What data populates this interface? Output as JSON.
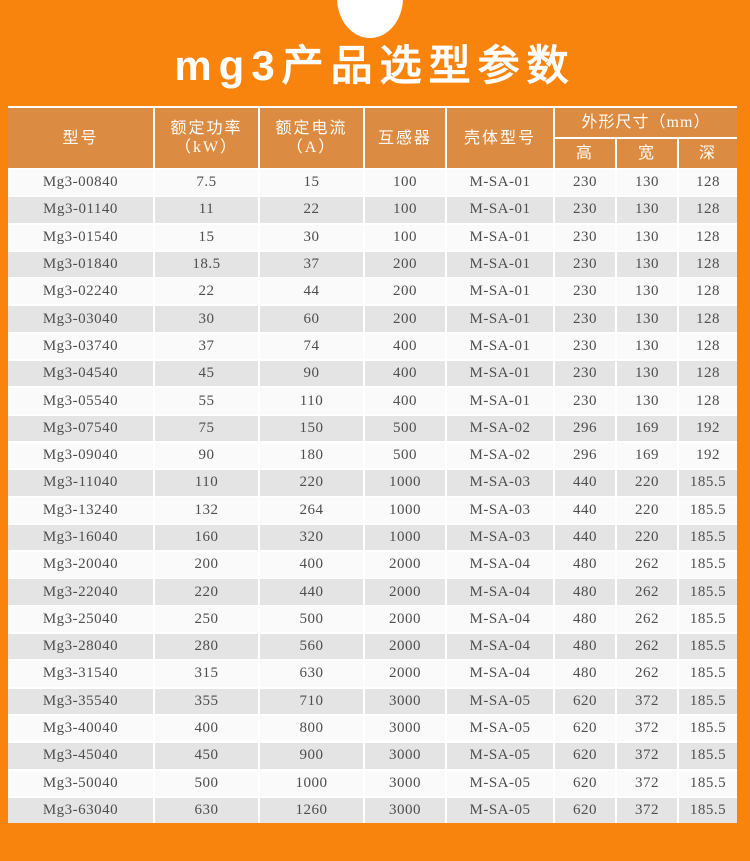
{
  "page": {
    "title": "mg3产品选型参数",
    "colors": {
      "background": "#F8830D",
      "header_cell": "#DC8C42",
      "divider": "#FFFFFF",
      "row": "#FAFAFA",
      "row_alt": "#E4E4E4",
      "body_text": "#4E4E4E",
      "header_text": "#FFFDFA"
    }
  },
  "table": {
    "headers": {
      "model": "型号",
      "rated_power": "额定功率",
      "rated_power_unit": "（kW）",
      "rated_current": "额定电流",
      "rated_current_unit": "（A）",
      "transformer": "互感器",
      "housing_model": "壳体型号",
      "dimensions": "外形尺寸（mm）",
      "height": "高",
      "width": "宽",
      "depth": "深"
    },
    "rows": [
      [
        "Mg3-00840",
        "7.5",
        "15",
        "100",
        "M-SA-01",
        "230",
        "130",
        "128"
      ],
      [
        "Mg3-01140",
        "11",
        "22",
        "100",
        "M-SA-01",
        "230",
        "130",
        "128"
      ],
      [
        "Mg3-01540",
        "15",
        "30",
        "100",
        "M-SA-01",
        "230",
        "130",
        "128"
      ],
      [
        "Mg3-01840",
        "18.5",
        "37",
        "200",
        "M-SA-01",
        "230",
        "130",
        "128"
      ],
      [
        "Mg3-02240",
        "22",
        "44",
        "200",
        "M-SA-01",
        "230",
        "130",
        "128"
      ],
      [
        "Mg3-03040",
        "30",
        "60",
        "200",
        "M-SA-01",
        "230",
        "130",
        "128"
      ],
      [
        "Mg3-03740",
        "37",
        "74",
        "400",
        "M-SA-01",
        "230",
        "130",
        "128"
      ],
      [
        "Mg3-04540",
        "45",
        "90",
        "400",
        "M-SA-01",
        "230",
        "130",
        "128"
      ],
      [
        "Mg3-05540",
        "55",
        "110",
        "400",
        "M-SA-01",
        "230",
        "130",
        "128"
      ],
      [
        "Mg3-07540",
        "75",
        "150",
        "500",
        "M-SA-02",
        "296",
        "169",
        "192"
      ],
      [
        "Mg3-09040",
        "90",
        "180",
        "500",
        "M-SA-02",
        "296",
        "169",
        "192"
      ],
      [
        "Mg3-11040",
        "110",
        "220",
        "1000",
        "M-SA-03",
        "440",
        "220",
        "185.5"
      ],
      [
        "Mg3-13240",
        "132",
        "264",
        "1000",
        "M-SA-03",
        "440",
        "220",
        "185.5"
      ],
      [
        "Mg3-16040",
        "160",
        "320",
        "1000",
        "M-SA-03",
        "440",
        "220",
        "185.5"
      ],
      [
        "Mg3-20040",
        "200",
        "400",
        "2000",
        "M-SA-04",
        "480",
        "262",
        "185.5"
      ],
      [
        "Mg3-22040",
        "220",
        "440",
        "2000",
        "M-SA-04",
        "480",
        "262",
        "185.5"
      ],
      [
        "Mg3-25040",
        "250",
        "500",
        "2000",
        "M-SA-04",
        "480",
        "262",
        "185.5"
      ],
      [
        "Mg3-28040",
        "280",
        "560",
        "2000",
        "M-SA-04",
        "480",
        "262",
        "185.5"
      ],
      [
        "Mg3-31540",
        "315",
        "630",
        "2000",
        "M-SA-04",
        "480",
        "262",
        "185.5"
      ],
      [
        "Mg3-35540",
        "355",
        "710",
        "3000",
        "M-SA-05",
        "620",
        "372",
        "185.5"
      ],
      [
        "Mg3-40040",
        "400",
        "800",
        "3000",
        "M-SA-05",
        "620",
        "372",
        "185.5"
      ],
      [
        "Mg3-45040",
        "450",
        "900",
        "3000",
        "M-SA-05",
        "620",
        "372",
        "185.5"
      ],
      [
        "Mg3-50040",
        "500",
        "1000",
        "3000",
        "M-SA-05",
        "620",
        "372",
        "185.5"
      ],
      [
        "Mg3-63040",
        "630",
        "1260",
        "3000",
        "M-SA-05",
        "620",
        "372",
        "185.5"
      ]
    ]
  }
}
